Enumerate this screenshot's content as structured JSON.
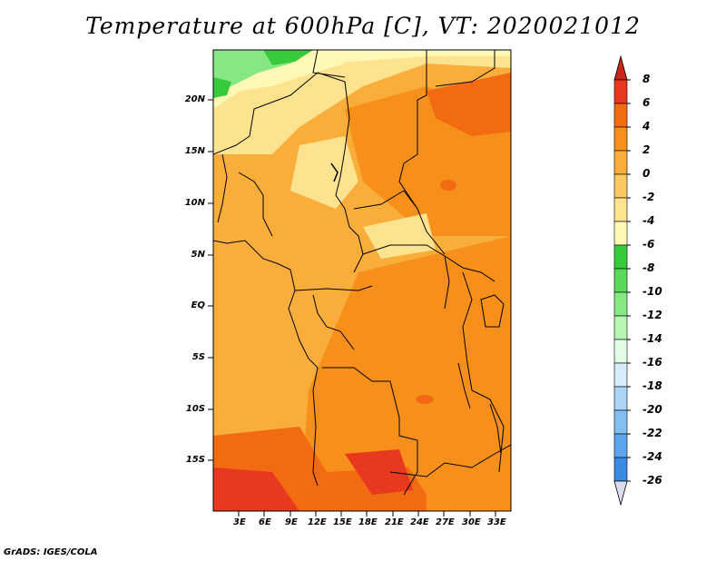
{
  "title": "Temperature at 600hPa [C], VT: 2020021012",
  "credit": "GrADS: IGES/COLA",
  "map": {
    "lat_ticks": [
      "20N",
      "15N",
      "10N",
      "5N",
      "EQ",
      "5S",
      "10S",
      "15S"
    ],
    "lon_ticks": [
      "3E",
      "6E",
      "9E",
      "12E",
      "15E",
      "18E",
      "21E",
      "24E",
      "27E",
      "30E",
      "33E"
    ]
  },
  "colorbar": {
    "labels": [
      "8",
      "6",
      "4",
      "2",
      "0",
      "-2",
      "-4",
      "-6",
      "-8",
      "-10",
      "-12",
      "-14",
      "-16",
      "-18",
      "-20",
      "-22",
      "-24",
      "-26"
    ],
    "colors": [
      "#e8391f",
      "#f26a12",
      "#f7901a",
      "#f9ad3b",
      "#fbc963",
      "#fde38f",
      "#fff9b5",
      "#39c93c",
      "#5ad85a",
      "#86e785",
      "#b7f5b2",
      "#e2fbe2",
      "#d6ecfa",
      "#a9d4f6",
      "#83bff0",
      "#5ba5ea",
      "#3c8ae2",
      "#2770d6",
      "#1b55c4",
      "#1039a6",
      "#0a1e7a"
    ],
    "top_arrow_color": "#c8251a",
    "bottom_arrow_color": "#dcdcf0"
  }
}
